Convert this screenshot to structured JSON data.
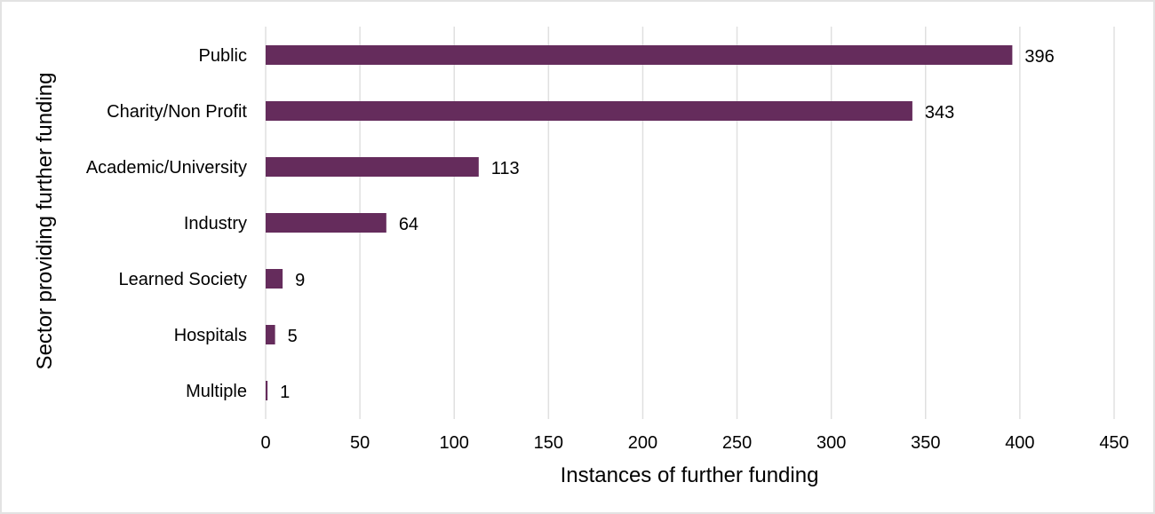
{
  "chart_data": {
    "type": "bar",
    "orientation": "horizontal",
    "title": "",
    "xlabel": "Instances of further funding",
    "ylabel": "Sector providing further funding",
    "categories": [
      "Public",
      "Charity/Non Profit",
      "Academic/University",
      "Industry",
      "Learned Society",
      "Hospitals",
      "Multiple"
    ],
    "values": [
      396,
      343,
      113,
      64,
      9,
      5,
      1
    ],
    "xlim": [
      0,
      450
    ],
    "xticks": [
      0,
      50,
      100,
      150,
      200,
      250,
      300,
      350,
      400,
      450
    ],
    "grid": "vertical",
    "data_labels": true,
    "colors": {
      "bar": "#652c5c",
      "grid": "#e0e0e0"
    }
  }
}
